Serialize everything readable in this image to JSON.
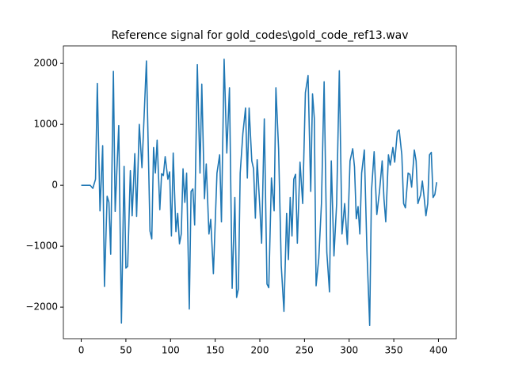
{
  "chart_data": {
    "type": "line",
    "title": "Reference signal for gold_codes\\gold_code_ref13.wav",
    "series": [
      {
        "color": "#1f77b4",
        "x": [
          0,
          10,
          13,
          16,
          18,
          21,
          24,
          26,
          29,
          31,
          33,
          36,
          38,
          42,
          45,
          48,
          50,
          52,
          55,
          57,
          60,
          62,
          65,
          68,
          73,
          77,
          79,
          81,
          83,
          85,
          88,
          90,
          92,
          94,
          97,
          99,
          101,
          103,
          106,
          108,
          110,
          112,
          114,
          116,
          118,
          121,
          123,
          125,
          127,
          130,
          133,
          135,
          138,
          140,
          143,
          145,
          148,
          152,
          155,
          157,
          160,
          163,
          166,
          169,
          172,
          174,
          176,
          178,
          181,
          184,
          186,
          188,
          191,
          193,
          195,
          197,
          200,
          202,
          205,
          208,
          210,
          213,
          216,
          218,
          221,
          224,
          227,
          230,
          232,
          234,
          236,
          238,
          240,
          242,
          245,
          248,
          251,
          254,
          257,
          259,
          261,
          263,
          266,
          269,
          272,
          275,
          278,
          280,
          283,
          286,
          289,
          292,
          295,
          298,
          301,
          304,
          306,
          308,
          310,
          312,
          314,
          317,
          320,
          323,
          325,
          328,
          331,
          334,
          337,
          339,
          341,
          344,
          346,
          349,
          351,
          354,
          356,
          359,
          361,
          363,
          366,
          368,
          370,
          373,
          375,
          377,
          380,
          382,
          384,
          386,
          388,
          390,
          392,
          394,
          396,
          398
        ],
        "values": [
          0,
          0,
          -50,
          100,
          1670,
          -420,
          650,
          -1660,
          -180,
          -280,
          -1130,
          1870,
          -430,
          980,
          -2260,
          310,
          -1360,
          -1330,
          240,
          -500,
          520,
          -510,
          1000,
          290,
          2040,
          -750,
          -880,
          620,
          200,
          740,
          -400,
          190,
          160,
          470,
          100,
          220,
          -830,
          530,
          -760,
          -460,
          -960,
          -800,
          270,
          -280,
          200,
          -2030,
          -100,
          -60,
          -650,
          1980,
          200,
          1660,
          -220,
          350,
          -800,
          -560,
          -1450,
          200,
          500,
          -600,
          2070,
          530,
          1600,
          -1690,
          -200,
          -1840,
          -1700,
          200,
          850,
          1270,
          120,
          1270,
          400,
          270,
          -540,
          420,
          -360,
          -950,
          1090,
          -1620,
          -1680,
          120,
          -420,
          1600,
          600,
          -1320,
          -2070,
          -460,
          -1220,
          -200,
          -830,
          100,
          180,
          -950,
          380,
          -300,
          1520,
          1800,
          -100,
          1500,
          1100,
          -1650,
          -1200,
          -300,
          1700,
          -1100,
          -1750,
          400,
          -1160,
          -300,
          1880,
          -800,
          -300,
          -970,
          400,
          600,
          300,
          -550,
          -350,
          -800,
          200,
          580,
          -1100,
          -2300,
          -100,
          550,
          -480,
          -100,
          400,
          -220,
          -600,
          500,
          330,
          620,
          380,
          880,
          910,
          500,
          -300,
          -370,
          200,
          180,
          -30,
          580,
          400,
          -300,
          -160,
          70,
          -200,
          -500,
          -300,
          500,
          540,
          -200,
          -150,
          50
        ]
      }
    ],
    "xlim": [
      -20,
      420
    ],
    "xticks": [
      0,
      50,
      100,
      150,
      200,
      250,
      300,
      350,
      400
    ],
    "ylim": [
      -2518,
      2288
    ],
    "yticks": [
      {
        "value": -2000,
        "label": "−2000"
      },
      {
        "value": -1000,
        "label": "−1000"
      },
      0,
      1000,
      2000
    ]
  }
}
